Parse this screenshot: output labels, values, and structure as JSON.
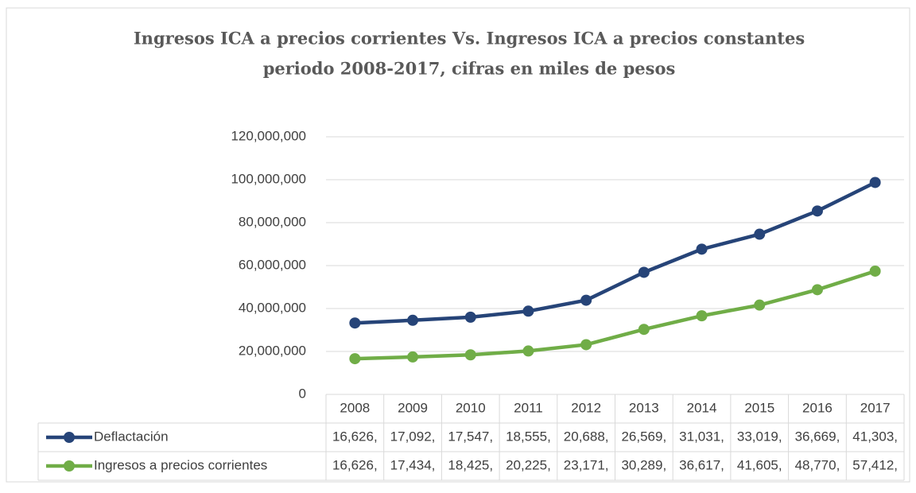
{
  "chart_data": {
    "type": "line",
    "stacked": true,
    "title": [
      "Ingresos ICA a precios corrientes Vs. Ingresos ICA a precios constantes",
      "periodo 2008-2017, cifras en miles de pesos"
    ],
    "categories": [
      "2008",
      "2009",
      "2010",
      "2011",
      "2012",
      "2013",
      "2014",
      "2015",
      "2016",
      "2017"
    ],
    "series": [
      {
        "name": "Deflactación",
        "color": "#264478",
        "values": [
          16626000,
          17092000,
          17547000,
          18555000,
          20688000,
          26569000,
          31031000,
          33019000,
          36669000,
          41303000
        ],
        "value_labels": [
          "16,626,",
          "17,092,",
          "17,547,",
          "18,555,",
          "20,688,",
          "26,569,",
          "31,031,",
          "33,019,",
          "36,669,",
          "41,303,"
        ]
      },
      {
        "name": "Ingresos a precios corrientes",
        "color": "#70ad47",
        "values": [
          16626000,
          17434000,
          18425000,
          20225000,
          23171000,
          30289000,
          36617000,
          41605000,
          48770000,
          57412000
        ],
        "value_labels": [
          "16,626,",
          "17,434,",
          "18,425,",
          "20,225,",
          "23,171,",
          "30,289,",
          "36,617,",
          "41,605,",
          "48,770,",
          "57,412,"
        ]
      }
    ],
    "ylim": [
      0,
      120000000
    ],
    "yticks": [
      0,
      {
        "value": 20000000,
        "label": "20,000,000"
      },
      {
        "value": 40000000,
        "label": "40,000,000"
      },
      {
        "value": 60000000,
        "label": "60,000,000"
      },
      {
        "value": 80000000,
        "label": "80,000,000"
      },
      {
        "value": 100000000,
        "label": "100,000,000"
      },
      {
        "value": 120000000,
        "label": "120,000,000"
      }
    ],
    "grid": true
  }
}
